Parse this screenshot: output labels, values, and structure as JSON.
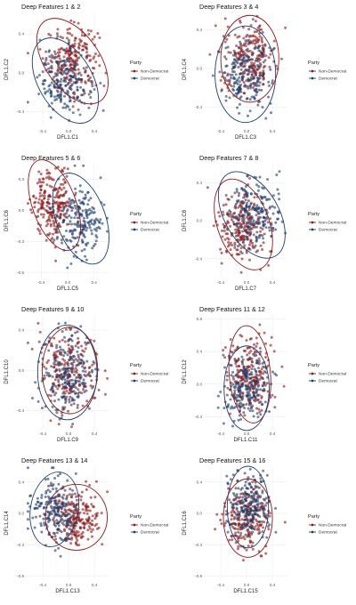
{
  "chart_data": [
    {
      "type": "scatter",
      "title": "Deep Features 1 & 2",
      "xlabel": "DFL1.C1",
      "ylabel": "DFL1.C2",
      "xticks": [
        -0.4,
        0.0,
        0.4
      ],
      "yticks": [
        0.4,
        0.0,
        -0.4
      ],
      "xlim": [
        -0.65,
        0.62
      ],
      "ylim": [
        -0.55,
        0.62
      ],
      "ellipses": [
        {
          "series": "Non-Democrat",
          "cx": 0.06,
          "cy": 0.12,
          "rx": 0.42,
          "ry": 0.5,
          "angle": -35
        },
        {
          "series": "Democrat",
          "cx": -0.05,
          "cy": -0.08,
          "rx": 0.42,
          "ry": 0.48,
          "angle": -30
        }
      ],
      "series": [
        {
          "name": "Non-Democrat",
          "color": "#8b1a1a",
          "center": [
            0.06,
            0.14
          ],
          "spread": [
            0.2,
            0.17
          ],
          "n": 230
        },
        {
          "name": "Democrat",
          "color": "#1f3d6b",
          "center": [
            -0.06,
            -0.1
          ],
          "spread": [
            0.2,
            0.16
          ],
          "n": 200
        }
      ],
      "legend": {
        "title": "Party",
        "entries": [
          "Non-Democrat",
          "Democrat"
        ],
        "position": "right"
      }
    },
    {
      "type": "scatter",
      "title": "Deep Features 3 & 4",
      "xlabel": "DFL1.C3",
      "ylabel": "DFL1.C4",
      "xticks": [
        -0.4,
        0.0,
        0.4
      ],
      "yticks": [
        0.4,
        0.0,
        -0.4
      ],
      "xlim": [
        -0.65,
        0.62
      ],
      "ylim": [
        -0.6,
        0.58
      ],
      "ellipses": [
        {
          "series": "Non-Democrat",
          "cx": 0.05,
          "cy": 0.1,
          "rx": 0.45,
          "ry": 0.45,
          "angle": 0
        },
        {
          "series": "Democrat",
          "cx": -0.02,
          "cy": -0.06,
          "rx": 0.47,
          "ry": 0.5,
          "angle": 0
        }
      ],
      "series": [
        {
          "name": "Non-Democrat",
          "color": "#8b1a1a",
          "center": [
            0.05,
            0.12
          ],
          "spread": [
            0.2,
            0.18
          ],
          "n": 230
        },
        {
          "name": "Democrat",
          "color": "#1f3d6b",
          "center": [
            -0.02,
            -0.08
          ],
          "spread": [
            0.2,
            0.18
          ],
          "n": 200
        }
      ],
      "legend": {
        "title": "Party",
        "entries": [
          "Non-Democrat",
          "Democrat"
        ],
        "position": "right"
      }
    },
    {
      "type": "scatter",
      "title": "Deep Features 5 & 6",
      "xlabel": "DFL1.C5",
      "ylabel": "DFL1.C6",
      "xticks": [
        -0.4,
        0.0,
        0.4
      ],
      "yticks": [
        0.3,
        0.0,
        -0.3,
        -0.6
      ],
      "xlim": [
        -0.62,
        0.62
      ],
      "ylim": [
        -0.65,
        0.45
      ],
      "ellipses": [
        {
          "series": "Non-Democrat",
          "cx": -0.2,
          "cy": 0.05,
          "rx": 0.33,
          "ry": 0.46,
          "angle": -20
        },
        {
          "series": "Democrat",
          "cx": 0.2,
          "cy": -0.08,
          "rx": 0.37,
          "ry": 0.46,
          "angle": -20
        }
      ],
      "series": [
        {
          "name": "Non-Democrat",
          "color": "#8b1a1a",
          "center": [
            -0.22,
            0.06
          ],
          "spread": [
            0.15,
            0.17
          ],
          "n": 230
        },
        {
          "name": "Democrat",
          "color": "#1f3d6b",
          "center": [
            0.2,
            -0.1
          ],
          "spread": [
            0.17,
            0.17
          ],
          "n": 200
        }
      ],
      "legend": {
        "title": "Party",
        "entries": [
          "Non-Democrat",
          "Democrat"
        ],
        "position": "right"
      }
    },
    {
      "type": "scatter",
      "title": "Deep Features 7 & 8",
      "xlabel": "DFL1.C7",
      "ylabel": "DFL1.C8",
      "xticks": [
        -0.4,
        0.0,
        0.4
      ],
      "yticks": [
        0.4,
        0.0,
        -0.4
      ],
      "xlim": [
        -0.65,
        0.62
      ],
      "ylim": [
        -0.6,
        0.6
      ],
      "ellipses": [
        {
          "series": "Non-Democrat",
          "cx": -0.05,
          "cy": -0.04,
          "rx": 0.4,
          "ry": 0.5,
          "angle": -20
        },
        {
          "series": "Democrat",
          "cx": 0.08,
          "cy": 0.06,
          "rx": 0.42,
          "ry": 0.5,
          "angle": -30
        }
      ],
      "series": [
        {
          "name": "Non-Democrat",
          "color": "#8b1a1a",
          "center": [
            -0.06,
            -0.06
          ],
          "spread": [
            0.19,
            0.19
          ],
          "n": 230
        },
        {
          "name": "Democrat",
          "color": "#1f3d6b",
          "center": [
            0.1,
            0.08
          ],
          "spread": [
            0.2,
            0.19
          ],
          "n": 200
        }
      ],
      "legend": {
        "title": "Party",
        "entries": [
          "Non-Democrat",
          "Democrat"
        ],
        "position": "right"
      }
    },
    {
      "type": "scatter",
      "title": "Deep Features 9 & 10",
      "xlabel": "DFL1.C9",
      "ylabel": "DFL1.C10",
      "xticks": [
        -0.4,
        0.0,
        0.4
      ],
      "yticks": [
        0.4,
        0.0,
        -0.4
      ],
      "xlim": [
        -0.65,
        0.62
      ],
      "ylim": [
        -0.58,
        0.55
      ],
      "ellipses": [
        {
          "series": "Non-Democrat",
          "cx": 0.02,
          "cy": 0.0,
          "rx": 0.43,
          "ry": 0.43,
          "angle": 0
        },
        {
          "series": "Democrat",
          "cx": -0.02,
          "cy": -0.02,
          "rx": 0.46,
          "ry": 0.47,
          "angle": 0
        }
      ],
      "series": [
        {
          "name": "Non-Democrat",
          "color": "#8b1a1a",
          "center": [
            0.0,
            0.0
          ],
          "spread": [
            0.21,
            0.2
          ],
          "n": 230
        },
        {
          "name": "Democrat",
          "color": "#1f3d6b",
          "center": [
            -0.02,
            -0.02
          ],
          "spread": [
            0.2,
            0.2
          ],
          "n": 200
        }
      ],
      "legend": {
        "title": "Party",
        "entries": [
          "Non-Democrat",
          "Democrat"
        ],
        "position": "right"
      }
    },
    {
      "type": "scatter",
      "title": "Deep Features 11 & 12",
      "xlabel": "DFL1.C11",
      "ylabel": "DFL1.C12",
      "xticks": [
        -0.4,
        0.0,
        0.4
      ],
      "yticks": [
        0.8,
        0.4,
        0.0,
        -0.4
      ],
      "xlim": [
        -0.65,
        0.62
      ],
      "ylim": [
        -0.55,
        0.85
      ],
      "ellipses": [
        {
          "series": "Non-Democrat",
          "cx": 0.05,
          "cy": 0.12,
          "rx": 0.32,
          "ry": 0.6,
          "angle": -5
        },
        {
          "series": "Democrat",
          "cx": 0.0,
          "cy": -0.05,
          "rx": 0.35,
          "ry": 0.52,
          "angle": 0
        }
      ],
      "series": [
        {
          "name": "Non-Democrat",
          "color": "#8b1a1a",
          "center": [
            0.04,
            0.12
          ],
          "spread": [
            0.17,
            0.26
          ],
          "n": 230
        },
        {
          "name": "Democrat",
          "color": "#1f3d6b",
          "center": [
            0.0,
            -0.06
          ],
          "spread": [
            0.18,
            0.2
          ],
          "n": 200
        }
      ],
      "legend": {
        "title": "Party",
        "entries": [
          "Non-Democrat",
          "Democrat"
        ],
        "position": "right"
      }
    },
    {
      "type": "scatter",
      "title": "Deep Features 13 & 14",
      "xlabel": "DFL1.C13",
      "ylabel": "DFL1.C14",
      "xticks": [
        -0.4,
        0.0,
        0.4
      ],
      "yticks": [
        0.4,
        0.0,
        -0.4,
        -0.8
      ],
      "xlim": [
        -0.65,
        0.62
      ],
      "ylim": [
        -0.85,
        0.6
      ],
      "ellipses": [
        {
          "series": "Non-Democrat",
          "cx": 0.12,
          "cy": -0.05,
          "rx": 0.48,
          "ry": 0.42,
          "angle": 0
        },
        {
          "series": "Democrat",
          "cx": -0.22,
          "cy": 0.05,
          "rx": 0.37,
          "ry": 0.48,
          "angle": 10
        }
      ],
      "series": [
        {
          "name": "Non-Democrat",
          "color": "#8b1a1a",
          "center": [
            0.12,
            -0.06
          ],
          "spread": [
            0.2,
            0.18
          ],
          "n": 230
        },
        {
          "name": "Democrat",
          "color": "#1f3d6b",
          "center": [
            -0.22,
            0.06
          ],
          "spread": [
            0.16,
            0.2
          ],
          "n": 200
        }
      ],
      "legend": {
        "title": "Party",
        "entries": [
          "Non-Democrat",
          "Democrat"
        ],
        "position": "right"
      }
    },
    {
      "type": "scatter",
      "title": "Deep Features 15 & 16",
      "xlabel": "DFL1.C15",
      "ylabel": "DFL1.C16",
      "xticks": [
        -0.4,
        0.0,
        0.4
      ],
      "yticks": [
        0.4,
        0.0,
        -0.4,
        -0.8
      ],
      "xlim": [
        -0.65,
        0.62
      ],
      "ylim": [
        -0.85,
        0.6
      ],
      "ellipses": [
        {
          "series": "Non-Democrat",
          "cx": 0.02,
          "cy": -0.06,
          "rx": 0.38,
          "ry": 0.5,
          "angle": 0
        },
        {
          "series": "Democrat",
          "cx": 0.02,
          "cy": 0.08,
          "rx": 0.32,
          "ry": 0.52,
          "angle": 0
        }
      ],
      "series": [
        {
          "name": "Non-Democrat",
          "color": "#8b1a1a",
          "center": [
            0.02,
            -0.06
          ],
          "spread": [
            0.19,
            0.22
          ],
          "n": 230
        },
        {
          "name": "Democrat",
          "color": "#1f3d6b",
          "center": [
            0.02,
            0.1
          ],
          "spread": [
            0.16,
            0.2
          ],
          "n": 200
        }
      ],
      "legend": {
        "title": "Party",
        "entries": [
          "Non-Democrat",
          "Democrat"
        ],
        "position": "right"
      }
    }
  ]
}
